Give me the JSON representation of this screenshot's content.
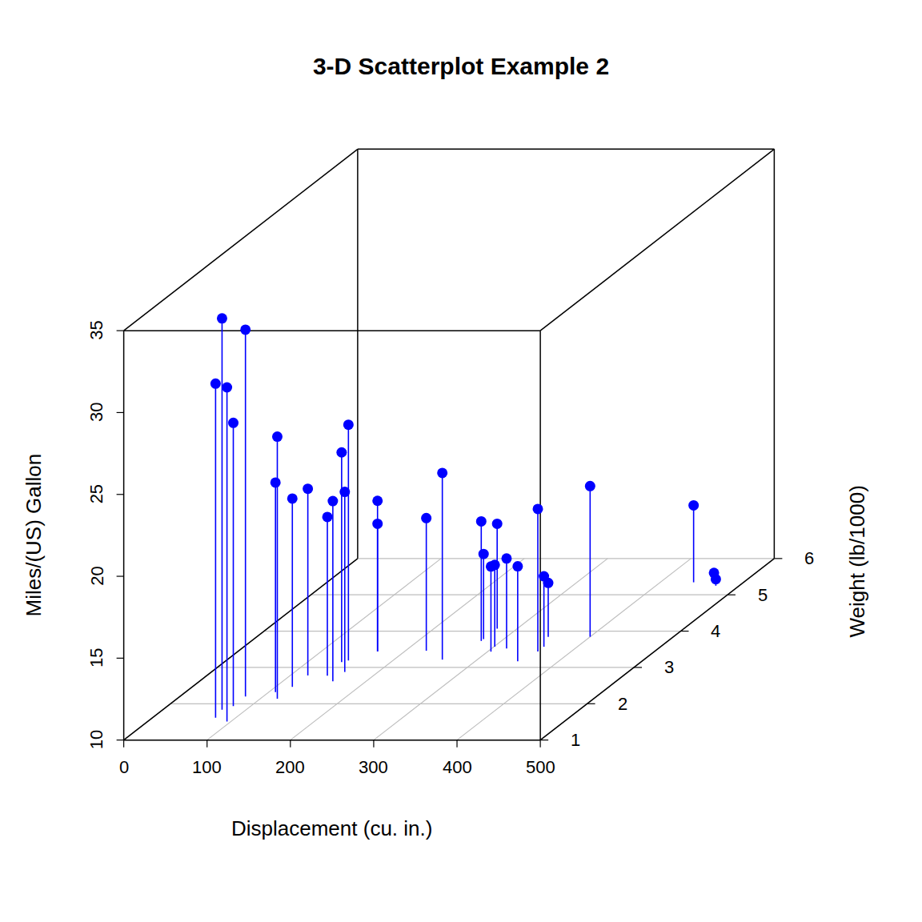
{
  "chart_data": {
    "type": "scatter3d",
    "title": "3-D Scatterplot Example 2",
    "xlabel": "Displacement (cu. in.)",
    "ylabel": "Weight (lb/1000)",
    "zlabel": "Miles/(US) Gallon",
    "x": [
      160,
      160,
      108,
      258,
      360,
      225,
      360,
      146.7,
      140.8,
      167.6,
      167.6,
      275.8,
      275.8,
      275.8,
      472,
      460,
      440,
      78.7,
      75.7,
      71.1,
      120.1,
      318,
      304,
      350,
      400,
      79,
      120.3,
      95.1,
      351,
      145,
      301,
      121
    ],
    "y": [
      2.62,
      2.875,
      2.32,
      3.215,
      3.44,
      3.46,
      3.57,
      3.19,
      3.15,
      3.44,
      3.44,
      4.07,
      3.73,
      3.78,
      5.25,
      5.424,
      5.345,
      2.2,
      1.615,
      1.835,
      2.465,
      3.52,
      3.435,
      3.84,
      3.845,
      1.935,
      2.14,
      1.513,
      3.17,
      2.77,
      3.57,
      2.78
    ],
    "z": [
      21,
      21,
      22.8,
      21.4,
      18.7,
      18.1,
      14.3,
      24.4,
      22.8,
      19.2,
      17.8,
      16.4,
      17.3,
      15.2,
      10.4,
      10.4,
      14.7,
      32.4,
      30.4,
      33.9,
      21.5,
      15.5,
      15.2,
      13.3,
      19.2,
      27.3,
      26,
      30.4,
      15.8,
      19.7,
      15,
      21.4
    ],
    "xlim": [
      0,
      500
    ],
    "ylim": [
      1,
      6
    ],
    "zlim": [
      10,
      35
    ],
    "xticks": [
      0,
      100,
      200,
      300,
      400,
      500
    ],
    "yticks": [
      1,
      2,
      3,
      4,
      5,
      6
    ],
    "zticks": [
      10,
      15,
      20,
      25,
      30,
      35
    ],
    "color": "#0000ff",
    "marker": "circle",
    "line_style": "solid",
    "grid": true
  }
}
